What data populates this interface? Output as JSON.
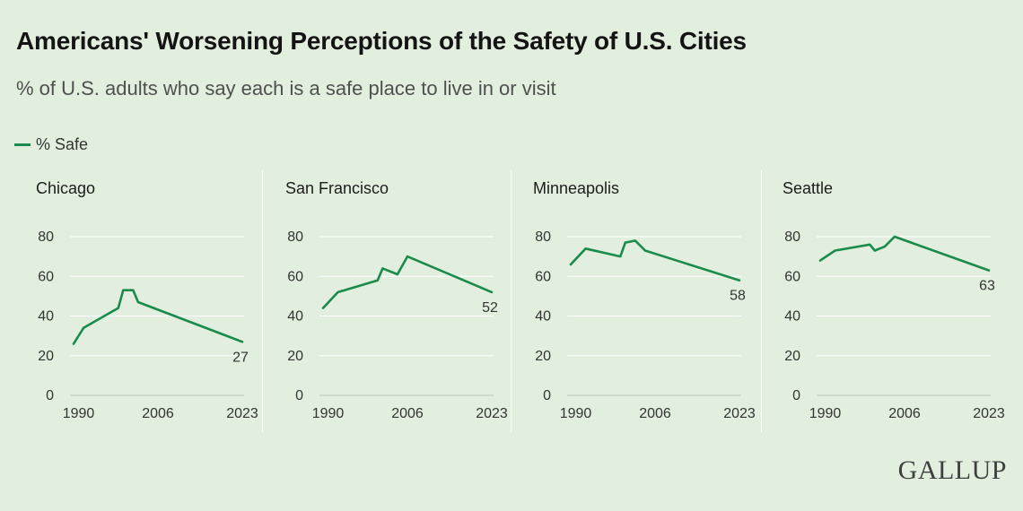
{
  "title": "Americans' Worsening Perceptions of the Safety of U.S. Cities",
  "subtitle": "% of U.S. adults who say each is a safe place to live in or visit",
  "legend": {
    "label": "% Safe",
    "color": "#1a8a4d"
  },
  "logo": "GALLUP",
  "chart_data": [
    {
      "type": "line",
      "title": "Chicago",
      "series": [
        {
          "name": "% Safe",
          "x": [
            1989,
            1991,
            1998,
            1999,
            2001,
            2002,
            2023
          ],
          "y": [
            26,
            34,
            44,
            53,
            53,
            47,
            27
          ]
        }
      ],
      "end_label": "27",
      "xticks": [
        "1990",
        "2006",
        "2023"
      ],
      "yticks": [
        0,
        20,
        40,
        60,
        80
      ],
      "xlim": [
        1989,
        2023
      ],
      "ylim": [
        0,
        80
      ],
      "grid": true
    },
    {
      "type": "line",
      "title": "San Francisco",
      "series": [
        {
          "name": "% Safe",
          "x": [
            1989,
            1992,
            2000,
            2001,
            2004,
            2006,
            2023
          ],
          "y": [
            44,
            52,
            58,
            64,
            61,
            70,
            52
          ]
        }
      ],
      "end_label": "52",
      "xticks": [
        "1990",
        "2006",
        "2023"
      ],
      "yticks": [
        0,
        20,
        40,
        60,
        80
      ],
      "xlim": [
        1989,
        2023
      ],
      "ylim": [
        0,
        80
      ],
      "grid": true
    },
    {
      "type": "line",
      "title": "Minneapolis",
      "series": [
        {
          "name": "% Safe",
          "x": [
            1989,
            1992,
            1999,
            2000,
            2002,
            2004,
            2023
          ],
          "y": [
            66,
            74,
            70,
            77,
            78,
            73,
            58
          ]
        }
      ],
      "end_label": "58",
      "xticks": [
        "1990",
        "2006",
        "2023"
      ],
      "yticks": [
        0,
        20,
        40,
        60,
        80
      ],
      "xlim": [
        1989,
        2023
      ],
      "ylim": [
        0,
        80
      ],
      "grid": true
    },
    {
      "type": "line",
      "title": "Seattle",
      "series": [
        {
          "name": "% Safe",
          "x": [
            1989,
            1992,
            1999,
            2000,
            2002,
            2004,
            2023
          ],
          "y": [
            68,
            73,
            76,
            73,
            75,
            80,
            63
          ]
        }
      ],
      "end_label": "63",
      "xticks": [
        "1990",
        "2006",
        "2023"
      ],
      "yticks": [
        0,
        20,
        40,
        60,
        80
      ],
      "xlim": [
        1989,
        2023
      ],
      "ylim": [
        0,
        80
      ],
      "grid": true
    }
  ]
}
